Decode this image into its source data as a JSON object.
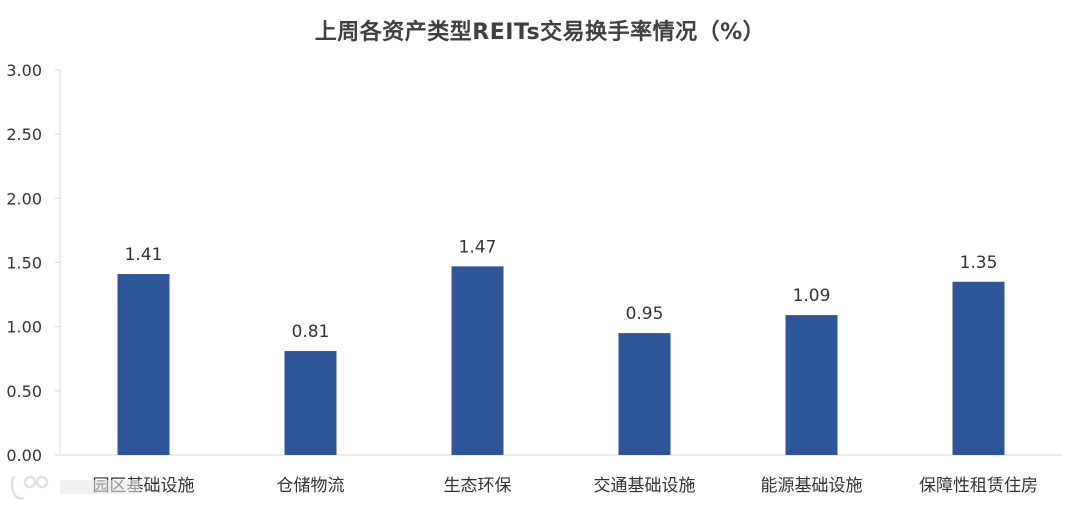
{
  "chart_data": {
    "type": "bar",
    "title": "上周各资产类型REITs交易换手率情况（%）",
    "xlabel": "",
    "ylabel": "",
    "categories": [
      "园区基础设施",
      "仓储物流",
      "生态环保",
      "交通基础设施",
      "能源基础设施",
      "保障性租赁住房"
    ],
    "values": [
      1.41,
      0.81,
      1.47,
      0.95,
      1.09,
      1.35
    ],
    "data_labels": [
      "1.41",
      "0.81",
      "1.47",
      "0.95",
      "1.09",
      "1.35"
    ],
    "ylim": [
      0,
      3.0
    ],
    "yticks": [
      "0.00",
      "0.50",
      "1.00",
      "1.50",
      "2.00",
      "2.50",
      "3.00"
    ],
    "grid": false,
    "legend": "none",
    "bar_color": "#2E5597",
    "axis_color": "#D9D9D9"
  },
  "watermark": {
    "icon": "watermark-logo-icon"
  }
}
